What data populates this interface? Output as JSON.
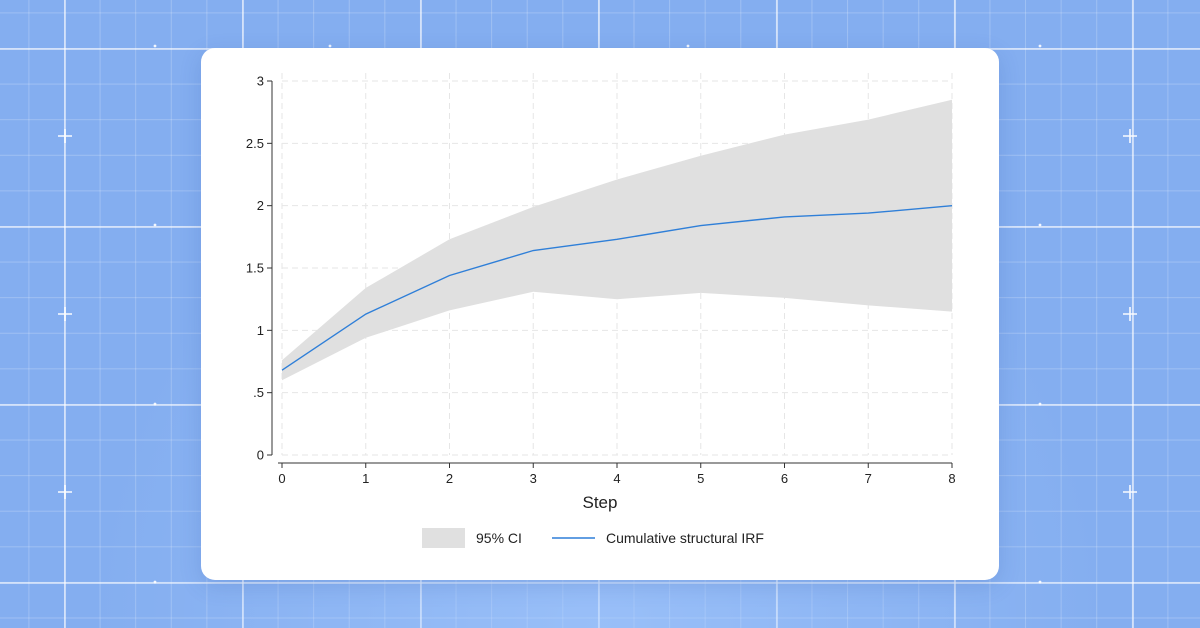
{
  "chart_data": {
    "type": "line",
    "xlabel": "Step",
    "ylabel": "",
    "xlim": [
      0,
      8
    ],
    "ylim": [
      0,
      3
    ],
    "x_ticks": [
      "0",
      "1",
      "2",
      "3",
      "4",
      "5",
      "6",
      "7",
      "8"
    ],
    "y_ticks": [
      "0",
      ".5",
      "1",
      "1.5",
      "2",
      "2.5",
      "3"
    ],
    "grid": true,
    "legend_position": "bottom",
    "x": [
      0,
      1,
      2,
      3,
      4,
      5,
      6,
      7,
      8
    ],
    "series": [
      {
        "name": "Cumulative structural IRF",
        "type": "line",
        "color": "#2f7fd8",
        "values": [
          0.68,
          1.13,
          1.44,
          1.64,
          1.73,
          1.84,
          1.91,
          1.94,
          2.0
        ]
      },
      {
        "name": "95% CI",
        "type": "band",
        "color": "#e0e0e0",
        "lower": [
          0.6,
          0.94,
          1.16,
          1.31,
          1.25,
          1.3,
          1.26,
          1.2,
          1.15
        ],
        "upper": [
          0.76,
          1.34,
          1.73,
          1.99,
          2.21,
          2.4,
          2.57,
          2.69,
          2.85
        ]
      }
    ]
  }
}
